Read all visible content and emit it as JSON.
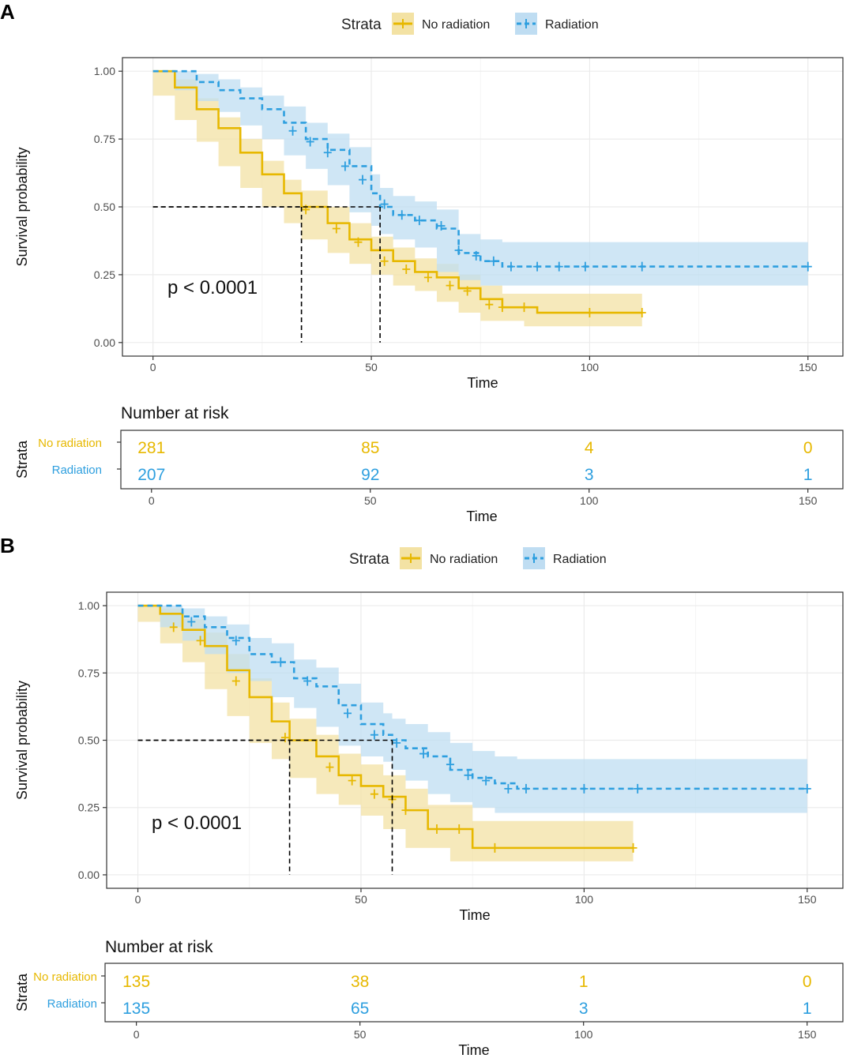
{
  "colors": {
    "no_radiation": "#E7B800",
    "radiation": "#2E9FDF",
    "no_radiation_band": "#F3E2A4",
    "radiation_band": "#BFDDF2",
    "frame": "#333333",
    "grid": "#EBEBEB"
  },
  "chart_data": [
    {
      "panel_label": "A",
      "type": "line",
      "title": "",
      "legend_title": "Strata",
      "legend_position": "top",
      "xlabel": "Time",
      "ylabel": "Survival probability",
      "xlim": [
        -7,
        158
      ],
      "ylim": [
        -0.05,
        1.05
      ],
      "x_ticks": [
        0,
        50,
        100,
        150
      ],
      "x_tick_labels": [
        "0",
        "50",
        "100",
        "150"
      ],
      "y_ticks": [
        0,
        0.25,
        0.5,
        0.75,
        1
      ],
      "y_tick_labels": [
        "0.00",
        "0.25",
        "0.50",
        "0.75",
        "1.00"
      ],
      "pvalue_text": "p < 0.0001",
      "median_survival": [
        34,
        52
      ],
      "series": [
        {
          "name": "No radiation",
          "x": [
            0,
            5,
            10,
            15,
            20,
            25,
            30,
            34,
            40,
            45,
            50,
            55,
            60,
            65,
            70,
            75,
            80,
            85,
            88,
            95,
            100,
            105,
            112
          ],
          "y": [
            1.0,
            0.94,
            0.86,
            0.79,
            0.7,
            0.62,
            0.55,
            0.5,
            0.44,
            0.38,
            0.34,
            0.3,
            0.26,
            0.24,
            0.2,
            0.16,
            0.13,
            0.13,
            0.11,
            0.11,
            0.11,
            0.11,
            0.11
          ],
          "upper": [
            1.0,
            0.97,
            0.9,
            0.83,
            0.75,
            0.67,
            0.6,
            0.56,
            0.5,
            0.44,
            0.39,
            0.35,
            0.31,
            0.29,
            0.25,
            0.21,
            0.18,
            0.18,
            0.18,
            0.18,
            0.18,
            0.18,
            0.18
          ],
          "lower": [
            1.0,
            0.91,
            0.82,
            0.74,
            0.65,
            0.57,
            0.5,
            0.44,
            0.38,
            0.33,
            0.29,
            0.25,
            0.21,
            0.19,
            0.15,
            0.11,
            0.08,
            0.08,
            0.06,
            0.06,
            0.06,
            0.06,
            0.06
          ],
          "censor_x": [
            35,
            42,
            47,
            53,
            58,
            63,
            68,
            72,
            77,
            80,
            85,
            100,
            112
          ],
          "censor_y": [
            0.49,
            0.42,
            0.37,
            0.3,
            0.27,
            0.24,
            0.21,
            0.19,
            0.14,
            0.13,
            0.13,
            0.11,
            0.11
          ]
        },
        {
          "name": "Radiation",
          "x": [
            0,
            5,
            10,
            15,
            20,
            25,
            30,
            35,
            40,
            45,
            50,
            52,
            55,
            60,
            65,
            70,
            75,
            80,
            90,
            100,
            150
          ],
          "y": [
            1.0,
            1.0,
            0.96,
            0.93,
            0.9,
            0.86,
            0.81,
            0.75,
            0.71,
            0.65,
            0.55,
            0.5,
            0.47,
            0.45,
            0.42,
            0.33,
            0.3,
            0.28,
            0.28,
            0.28,
            0.28
          ],
          "upper": [
            1.0,
            1.0,
            0.99,
            0.97,
            0.94,
            0.91,
            0.87,
            0.81,
            0.77,
            0.72,
            0.62,
            0.57,
            0.54,
            0.52,
            0.49,
            0.4,
            0.38,
            0.37,
            0.37,
            0.37,
            0.37
          ],
          "lower": [
            1.0,
            1.0,
            0.93,
            0.89,
            0.85,
            0.8,
            0.75,
            0.69,
            0.64,
            0.58,
            0.48,
            0.43,
            0.4,
            0.38,
            0.35,
            0.26,
            0.23,
            0.21,
            0.21,
            0.21,
            0.21
          ],
          "censor_x": [
            32,
            36,
            40,
            44,
            48,
            53,
            57,
            61,
            66,
            70,
            74,
            78,
            82,
            88,
            93,
            99,
            112,
            150
          ],
          "censor_y": [
            0.78,
            0.74,
            0.7,
            0.65,
            0.6,
            0.51,
            0.47,
            0.45,
            0.43,
            0.34,
            0.32,
            0.3,
            0.28,
            0.28,
            0.28,
            0.28,
            0.28,
            0.28
          ]
        }
      ],
      "risk_table": {
        "title": "Number at risk",
        "ylabel": "Strata",
        "xlabel": "Time",
        "times": [
          0,
          50,
          100,
          150
        ],
        "rows": [
          {
            "name": "No radiation",
            "values": [
              "281",
              "85",
              "4",
              "0"
            ]
          },
          {
            "name": "Radiation",
            "values": [
              "207",
              "92",
              "3",
              "1"
            ]
          }
        ]
      }
    },
    {
      "panel_label": "B",
      "type": "line",
      "title": "",
      "legend_title": "Strata",
      "legend_position": "top",
      "xlabel": "Time",
      "ylabel": "Survival probability",
      "xlim": [
        -7,
        158
      ],
      "ylim": [
        -0.05,
        1.05
      ],
      "x_ticks": [
        0,
        50,
        100,
        150
      ],
      "x_tick_labels": [
        "0",
        "50",
        "100",
        "150"
      ],
      "y_ticks": [
        0,
        0.25,
        0.5,
        0.75,
        1
      ],
      "y_tick_labels": [
        "0.00",
        "0.25",
        "0.50",
        "0.75",
        "1.00"
      ],
      "pvalue_text": "p < 0.0001",
      "median_survival": [
        34,
        57
      ],
      "series": [
        {
          "name": "No radiation",
          "x": [
            0,
            5,
            10,
            15,
            20,
            25,
            30,
            34,
            40,
            45,
            50,
            55,
            60,
            65,
            70,
            75,
            80,
            90,
            100,
            111
          ],
          "y": [
            1.0,
            0.97,
            0.91,
            0.85,
            0.76,
            0.66,
            0.57,
            0.5,
            0.44,
            0.37,
            0.33,
            0.29,
            0.24,
            0.17,
            0.17,
            0.1,
            0.1,
            0.1,
            0.1,
            0.1
          ],
          "upper": [
            1.0,
            0.99,
            0.95,
            0.9,
            0.82,
            0.73,
            0.64,
            0.58,
            0.52,
            0.45,
            0.41,
            0.37,
            0.32,
            0.26,
            0.26,
            0.2,
            0.2,
            0.2,
            0.2,
            0.2
          ],
          "lower": [
            1.0,
            0.94,
            0.86,
            0.79,
            0.69,
            0.59,
            0.49,
            0.43,
            0.36,
            0.3,
            0.26,
            0.22,
            0.17,
            0.1,
            0.1,
            0.05,
            0.05,
            0.05,
            0.05,
            0.05
          ],
          "censor_x": [
            8,
            14,
            22,
            33,
            43,
            48,
            53,
            57,
            60,
            67,
            72,
            80,
            111
          ],
          "censor_y": [
            0.92,
            0.87,
            0.72,
            0.51,
            0.4,
            0.35,
            0.3,
            0.28,
            0.24,
            0.17,
            0.17,
            0.1,
            0.1
          ]
        },
        {
          "name": "Radiation",
          "x": [
            0,
            5,
            10,
            15,
            20,
            25,
            30,
            35,
            40,
            45,
            50,
            55,
            57,
            60,
            65,
            70,
            75,
            80,
            85,
            90,
            100,
            150
          ],
          "y": [
            1.0,
            1.0,
            0.96,
            0.92,
            0.88,
            0.82,
            0.79,
            0.73,
            0.7,
            0.63,
            0.56,
            0.52,
            0.5,
            0.47,
            0.44,
            0.39,
            0.36,
            0.34,
            0.32,
            0.32,
            0.32,
            0.32
          ],
          "upper": [
            1.0,
            1.0,
            0.99,
            0.96,
            0.93,
            0.88,
            0.86,
            0.8,
            0.77,
            0.71,
            0.64,
            0.6,
            0.58,
            0.56,
            0.53,
            0.49,
            0.46,
            0.44,
            0.43,
            0.43,
            0.43,
            0.43
          ],
          "lower": [
            1.0,
            1.0,
            0.92,
            0.87,
            0.82,
            0.75,
            0.72,
            0.66,
            0.62,
            0.55,
            0.48,
            0.44,
            0.42,
            0.39,
            0.35,
            0.3,
            0.27,
            0.25,
            0.23,
            0.23,
            0.23,
            0.23
          ],
          "censor_x": [
            12,
            22,
            32,
            38,
            47,
            53,
            58,
            64,
            70,
            74,
            78,
            83,
            87,
            100,
            112,
            150
          ],
          "censor_y": [
            0.94,
            0.87,
            0.79,
            0.72,
            0.6,
            0.52,
            0.49,
            0.45,
            0.41,
            0.37,
            0.35,
            0.32,
            0.32,
            0.32,
            0.32,
            0.32
          ]
        }
      ],
      "risk_table": {
        "title": "Number at risk",
        "ylabel": "Strata",
        "xlabel": "Time",
        "times": [
          0,
          50,
          100,
          150
        ],
        "rows": [
          {
            "name": "No radiation",
            "values": [
              "135",
              "38",
              "1",
              "0"
            ]
          },
          {
            "name": "Radiation",
            "values": [
              "135",
              "65",
              "3",
              "1"
            ]
          }
        ]
      }
    }
  ]
}
